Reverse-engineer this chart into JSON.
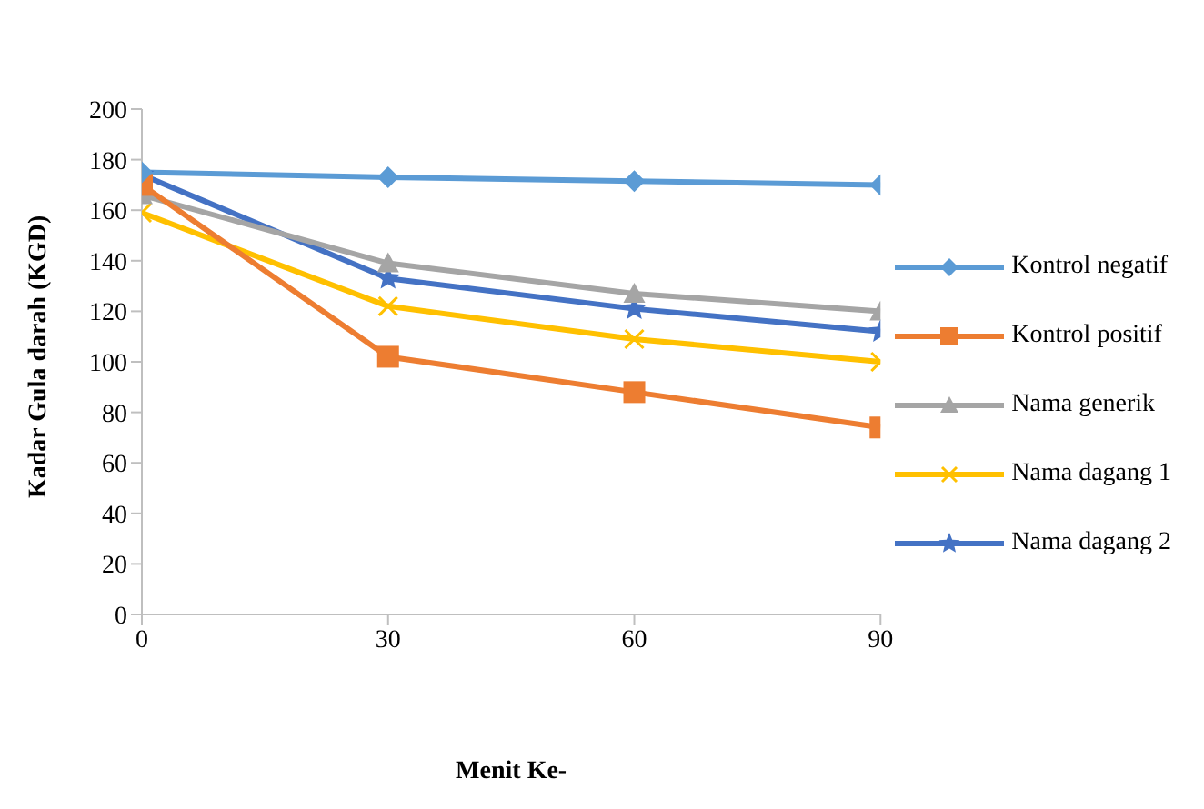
{
  "chart_data": {
    "type": "line",
    "xlabel": "Menit Ke-",
    "ylabel": "Kadar Gula darah (KGD)",
    "x": [
      0,
      30,
      60,
      90
    ],
    "xlim": [
      0,
      90
    ],
    "xticks": [
      0,
      30,
      60,
      90
    ],
    "ylim": [
      0,
      200
    ],
    "yticks": [
      0,
      20,
      40,
      60,
      80,
      100,
      120,
      140,
      160,
      180,
      200
    ],
    "grid": false,
    "legend": "right",
    "line_style": "solid",
    "series": [
      {
        "name": "Kontrol negatif",
        "color": "#5b9bd5",
        "marker": "diamond",
        "values": [
          175,
          173,
          171.5,
          170
        ]
      },
      {
        "name": "Kontrol positif",
        "color": "#ed7d31",
        "marker": "square",
        "values": [
          170,
          102,
          88,
          74
        ]
      },
      {
        "name": "Nama generik",
        "color": "#a5a5a5",
        "marker": "triangle",
        "values": [
          166,
          139,
          127,
          120
        ]
      },
      {
        "name": "Nama dagang 1",
        "color": "#ffc000",
        "marker": "cross",
        "values": [
          159,
          122,
          109,
          100
        ]
      },
      {
        "name": "Nama dagang 2",
        "color": "#4472c4",
        "marker": "star",
        "values": [
          174,
          133,
          121,
          112
        ]
      }
    ]
  }
}
